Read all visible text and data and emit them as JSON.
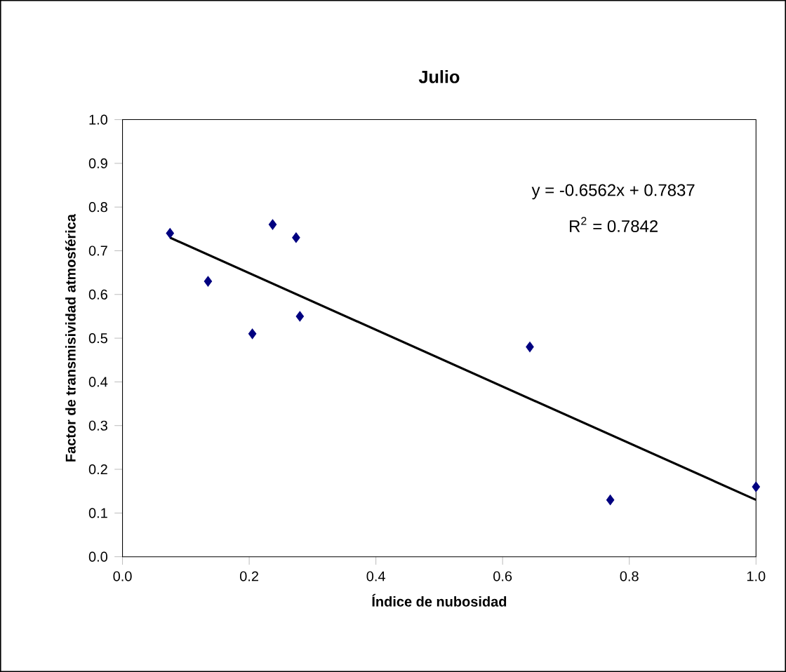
{
  "chart_data": {
    "type": "scatter",
    "title": "Julio",
    "xlabel": "Índice de nubosidad",
    "ylabel": "Factor de transmisividad atmosférica",
    "xlim": [
      0,
      1
    ],
    "ylim": [
      0,
      1
    ],
    "xticks": [
      {
        "value": 0,
        "label": "0.0"
      },
      0.2,
      0.4,
      0.6,
      0.8,
      {
        "value": 1,
        "label": "1.0"
      }
    ],
    "yticks": [
      {
        "value": 0,
        "label": "0.0"
      },
      0.1,
      0.2,
      0.3,
      0.4,
      0.5,
      0.6,
      0.7,
      0.8,
      0.9,
      {
        "value": 1,
        "label": "1.0"
      }
    ],
    "marker": "diamond",
    "grid": false,
    "annotations": [
      "y = -0.6562x + 0.7837",
      "R$^{2}$ = 0.7842"
    ],
    "series": [
      {
        "color": "#000080",
        "x": [
          0.075,
          0.135,
          0.205,
          0.237,
          0.274,
          0.28,
          0.643,
          0.77,
          1.0
        ],
        "values": [
          0.74,
          0.63,
          0.51,
          0.76,
          0.73,
          0.55,
          0.48,
          0.13,
          0.16
        ]
      },
      {
        "type": "line",
        "color": "#000000",
        "marker": "none",
        "x": [
          0.075,
          1.0
        ],
        "values": [
          0.73,
          0.13
        ]
      }
    ]
  }
}
